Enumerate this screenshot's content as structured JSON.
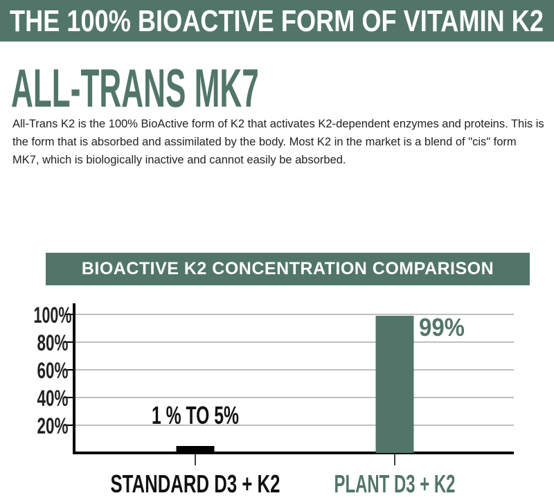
{
  "header": {
    "banner": "THE 100% BIOACTIVE FORM OF VITAMIN K2",
    "title": "ALL-TRANS MK7"
  },
  "description": "All-Trans K2 is the 100% BioActive form of K2 that activates K2-dependent enzymes and proteins. This is the form that is absorbed and assimilated by the body. Most K2 in the market is a blend of \"cis\" form MK7, which is biologically inactive and cannot easily be absorbed.",
  "colors": {
    "brand_green": "#52756a",
    "standard_bar": "#000000"
  },
  "chart_data": {
    "type": "bar",
    "title": "BIOACTIVE K2 CONCENTRATION COMPARISON",
    "categories": [
      "STANDARD D3 + K2",
      "PLANT D3 + K2"
    ],
    "values": [
      5,
      99
    ],
    "data_labels": [
      "1 % TO 5%",
      "99%"
    ],
    "yticks": [
      "20%",
      "40%",
      "60%",
      "80%",
      "100%"
    ],
    "ytick_values": [
      20,
      40,
      60,
      80,
      100
    ],
    "ylim": [
      0,
      100
    ],
    "grid": true,
    "bar_colors": [
      "#000000",
      "#52756a"
    ]
  }
}
